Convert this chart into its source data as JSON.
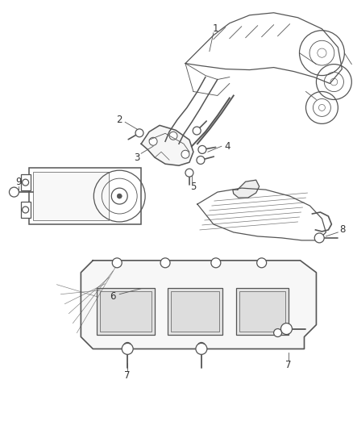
{
  "background_color": "#ffffff",
  "line_color": "#555555",
  "label_color": "#333333",
  "fig_width": 4.38,
  "fig_height": 5.33,
  "dpi": 100
}
